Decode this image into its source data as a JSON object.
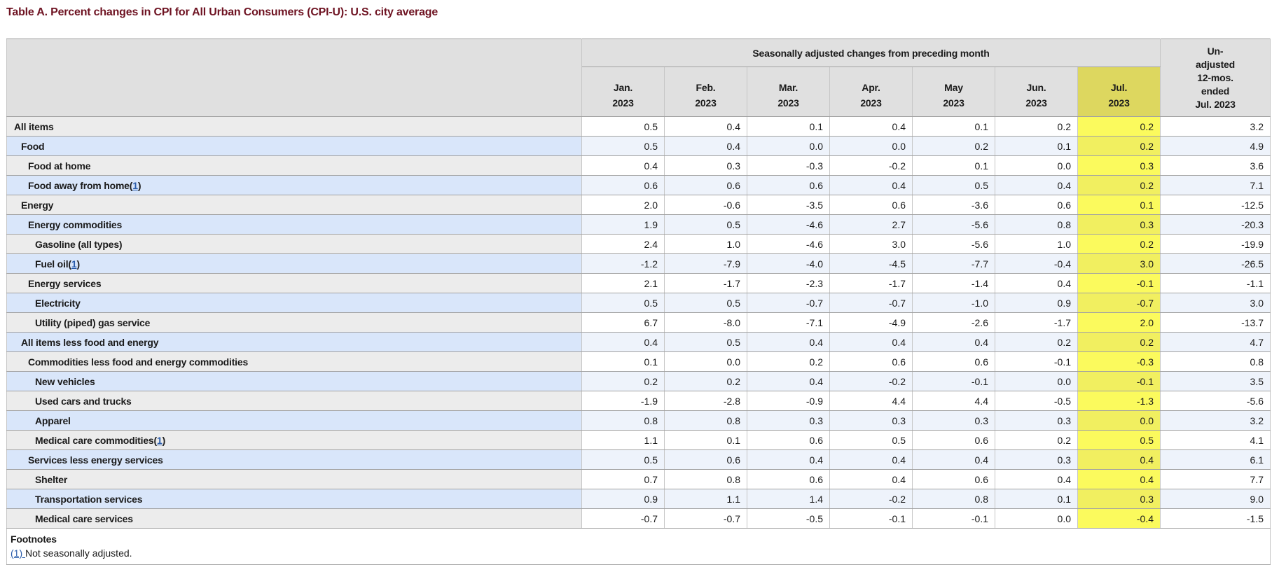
{
  "title": "Table A. Percent changes in CPI for All Urban Consumers (CPI-U): U.S. city average",
  "table": {
    "group_header": "Seasonally adjusted changes from preceding month",
    "unadjusted_header_lines": [
      "Un-",
      "adjusted",
      "12-mos.",
      "ended",
      "Jul. 2023"
    ],
    "columns": [
      {
        "month": "Jan.",
        "year": "2023",
        "highlight": false
      },
      {
        "month": "Feb.",
        "year": "2023",
        "highlight": false
      },
      {
        "month": "Mar.",
        "year": "2023",
        "highlight": false
      },
      {
        "month": "Apr.",
        "year": "2023",
        "highlight": false
      },
      {
        "month": "May",
        "year": "2023",
        "highlight": false
      },
      {
        "month": "Jun.",
        "year": "2023",
        "highlight": false
      },
      {
        "month": "Jul.",
        "year": "2023",
        "highlight": true
      }
    ],
    "rows": [
      {
        "label": "All items",
        "indent": 0,
        "footnote": null,
        "values": [
          "0.5",
          "0.4",
          "0.1",
          "0.4",
          "0.1",
          "0.2",
          "0.2"
        ],
        "unadjusted": "3.2"
      },
      {
        "label": "Food",
        "indent": 1,
        "footnote": null,
        "values": [
          "0.5",
          "0.4",
          "0.0",
          "0.0",
          "0.2",
          "0.1",
          "0.2"
        ],
        "unadjusted": "4.9"
      },
      {
        "label": "Food at home",
        "indent": 2,
        "footnote": null,
        "values": [
          "0.4",
          "0.3",
          "-0.3",
          "-0.2",
          "0.1",
          "0.0",
          "0.3"
        ],
        "unadjusted": "3.6"
      },
      {
        "label": "Food away from home",
        "indent": 2,
        "footnote": "1",
        "values": [
          "0.6",
          "0.6",
          "0.6",
          "0.4",
          "0.5",
          "0.4",
          "0.2"
        ],
        "unadjusted": "7.1"
      },
      {
        "label": "Energy",
        "indent": 1,
        "footnote": null,
        "values": [
          "2.0",
          "-0.6",
          "-3.5",
          "0.6",
          "-3.6",
          "0.6",
          "0.1"
        ],
        "unadjusted": "-12.5"
      },
      {
        "label": "Energy commodities",
        "indent": 2,
        "footnote": null,
        "values": [
          "1.9",
          "0.5",
          "-4.6",
          "2.7",
          "-5.6",
          "0.8",
          "0.3"
        ],
        "unadjusted": "-20.3"
      },
      {
        "label": "Gasoline (all types)",
        "indent": 3,
        "footnote": null,
        "values": [
          "2.4",
          "1.0",
          "-4.6",
          "3.0",
          "-5.6",
          "1.0",
          "0.2"
        ],
        "unadjusted": "-19.9"
      },
      {
        "label": "Fuel oil",
        "indent": 3,
        "footnote": "1",
        "values": [
          "-1.2",
          "-7.9",
          "-4.0",
          "-4.5",
          "-7.7",
          "-0.4",
          "3.0"
        ],
        "unadjusted": "-26.5"
      },
      {
        "label": "Energy services",
        "indent": 2,
        "footnote": null,
        "values": [
          "2.1",
          "-1.7",
          "-2.3",
          "-1.7",
          "-1.4",
          "0.4",
          "-0.1"
        ],
        "unadjusted": "-1.1"
      },
      {
        "label": "Electricity",
        "indent": 3,
        "footnote": null,
        "values": [
          "0.5",
          "0.5",
          "-0.7",
          "-0.7",
          "-1.0",
          "0.9",
          "-0.7"
        ],
        "unadjusted": "3.0"
      },
      {
        "label": "Utility (piped) gas service",
        "indent": 3,
        "footnote": null,
        "values": [
          "6.7",
          "-8.0",
          "-7.1",
          "-4.9",
          "-2.6",
          "-1.7",
          "2.0"
        ],
        "unadjusted": "-13.7"
      },
      {
        "label": "All items less food and energy",
        "indent": 1,
        "footnote": null,
        "values": [
          "0.4",
          "0.5",
          "0.4",
          "0.4",
          "0.4",
          "0.2",
          "0.2"
        ],
        "unadjusted": "4.7"
      },
      {
        "label": "Commodities less food and energy commodities",
        "indent": 2,
        "footnote": null,
        "values": [
          "0.1",
          "0.0",
          "0.2",
          "0.6",
          "0.6",
          "-0.1",
          "-0.3"
        ],
        "unadjusted": "0.8"
      },
      {
        "label": "New vehicles",
        "indent": 3,
        "footnote": null,
        "values": [
          "0.2",
          "0.2",
          "0.4",
          "-0.2",
          "-0.1",
          "0.0",
          "-0.1"
        ],
        "unadjusted": "3.5"
      },
      {
        "label": "Used cars and trucks",
        "indent": 3,
        "footnote": null,
        "values": [
          "-1.9",
          "-2.8",
          "-0.9",
          "4.4",
          "4.4",
          "-0.5",
          "-1.3"
        ],
        "unadjusted": "-5.6"
      },
      {
        "label": "Apparel",
        "indent": 3,
        "footnote": null,
        "values": [
          "0.8",
          "0.8",
          "0.3",
          "0.3",
          "0.3",
          "0.3",
          "0.0"
        ],
        "unadjusted": "3.2"
      },
      {
        "label": "Medical care commodities",
        "indent": 3,
        "footnote": "1",
        "values": [
          "1.1",
          "0.1",
          "0.6",
          "0.5",
          "0.6",
          "0.2",
          "0.5"
        ],
        "unadjusted": "4.1"
      },
      {
        "label": "Services less energy services",
        "indent": 2,
        "footnote": null,
        "values": [
          "0.5",
          "0.6",
          "0.4",
          "0.4",
          "0.4",
          "0.3",
          "0.4"
        ],
        "unadjusted": "6.1"
      },
      {
        "label": "Shelter",
        "indent": 3,
        "footnote": null,
        "values": [
          "0.7",
          "0.8",
          "0.6",
          "0.4",
          "0.6",
          "0.4",
          "0.4"
        ],
        "unadjusted": "7.7"
      },
      {
        "label": "Transportation services",
        "indent": 3,
        "footnote": null,
        "values": [
          "0.9",
          "1.1",
          "1.4",
          "-0.2",
          "0.8",
          "0.1",
          "0.3"
        ],
        "unadjusted": "9.0"
      },
      {
        "label": "Medical care services",
        "indent": 3,
        "footnote": null,
        "values": [
          "-0.7",
          "-0.7",
          "-0.5",
          "-0.1",
          "-0.1",
          "0.0",
          "-0.4"
        ],
        "unadjusted": "-1.5"
      }
    ],
    "footnotes": {
      "heading": "Footnotes",
      "items": [
        {
          "marker": "(1)",
          "text": "Not seasonally adjusted."
        }
      ]
    }
  },
  "colors": {
    "title": "#6e1322",
    "header_bg": "#e0e0e0",
    "row_gray_label": "#ececec",
    "row_blue_label": "#d9e6fa",
    "row_blue_data": "#eef3fb",
    "highlight_header": "#ddd75f",
    "highlight_cell": "#fbfa5d",
    "highlight_cell_on_blue": "#f1ef60",
    "link": "#2a5caa"
  }
}
